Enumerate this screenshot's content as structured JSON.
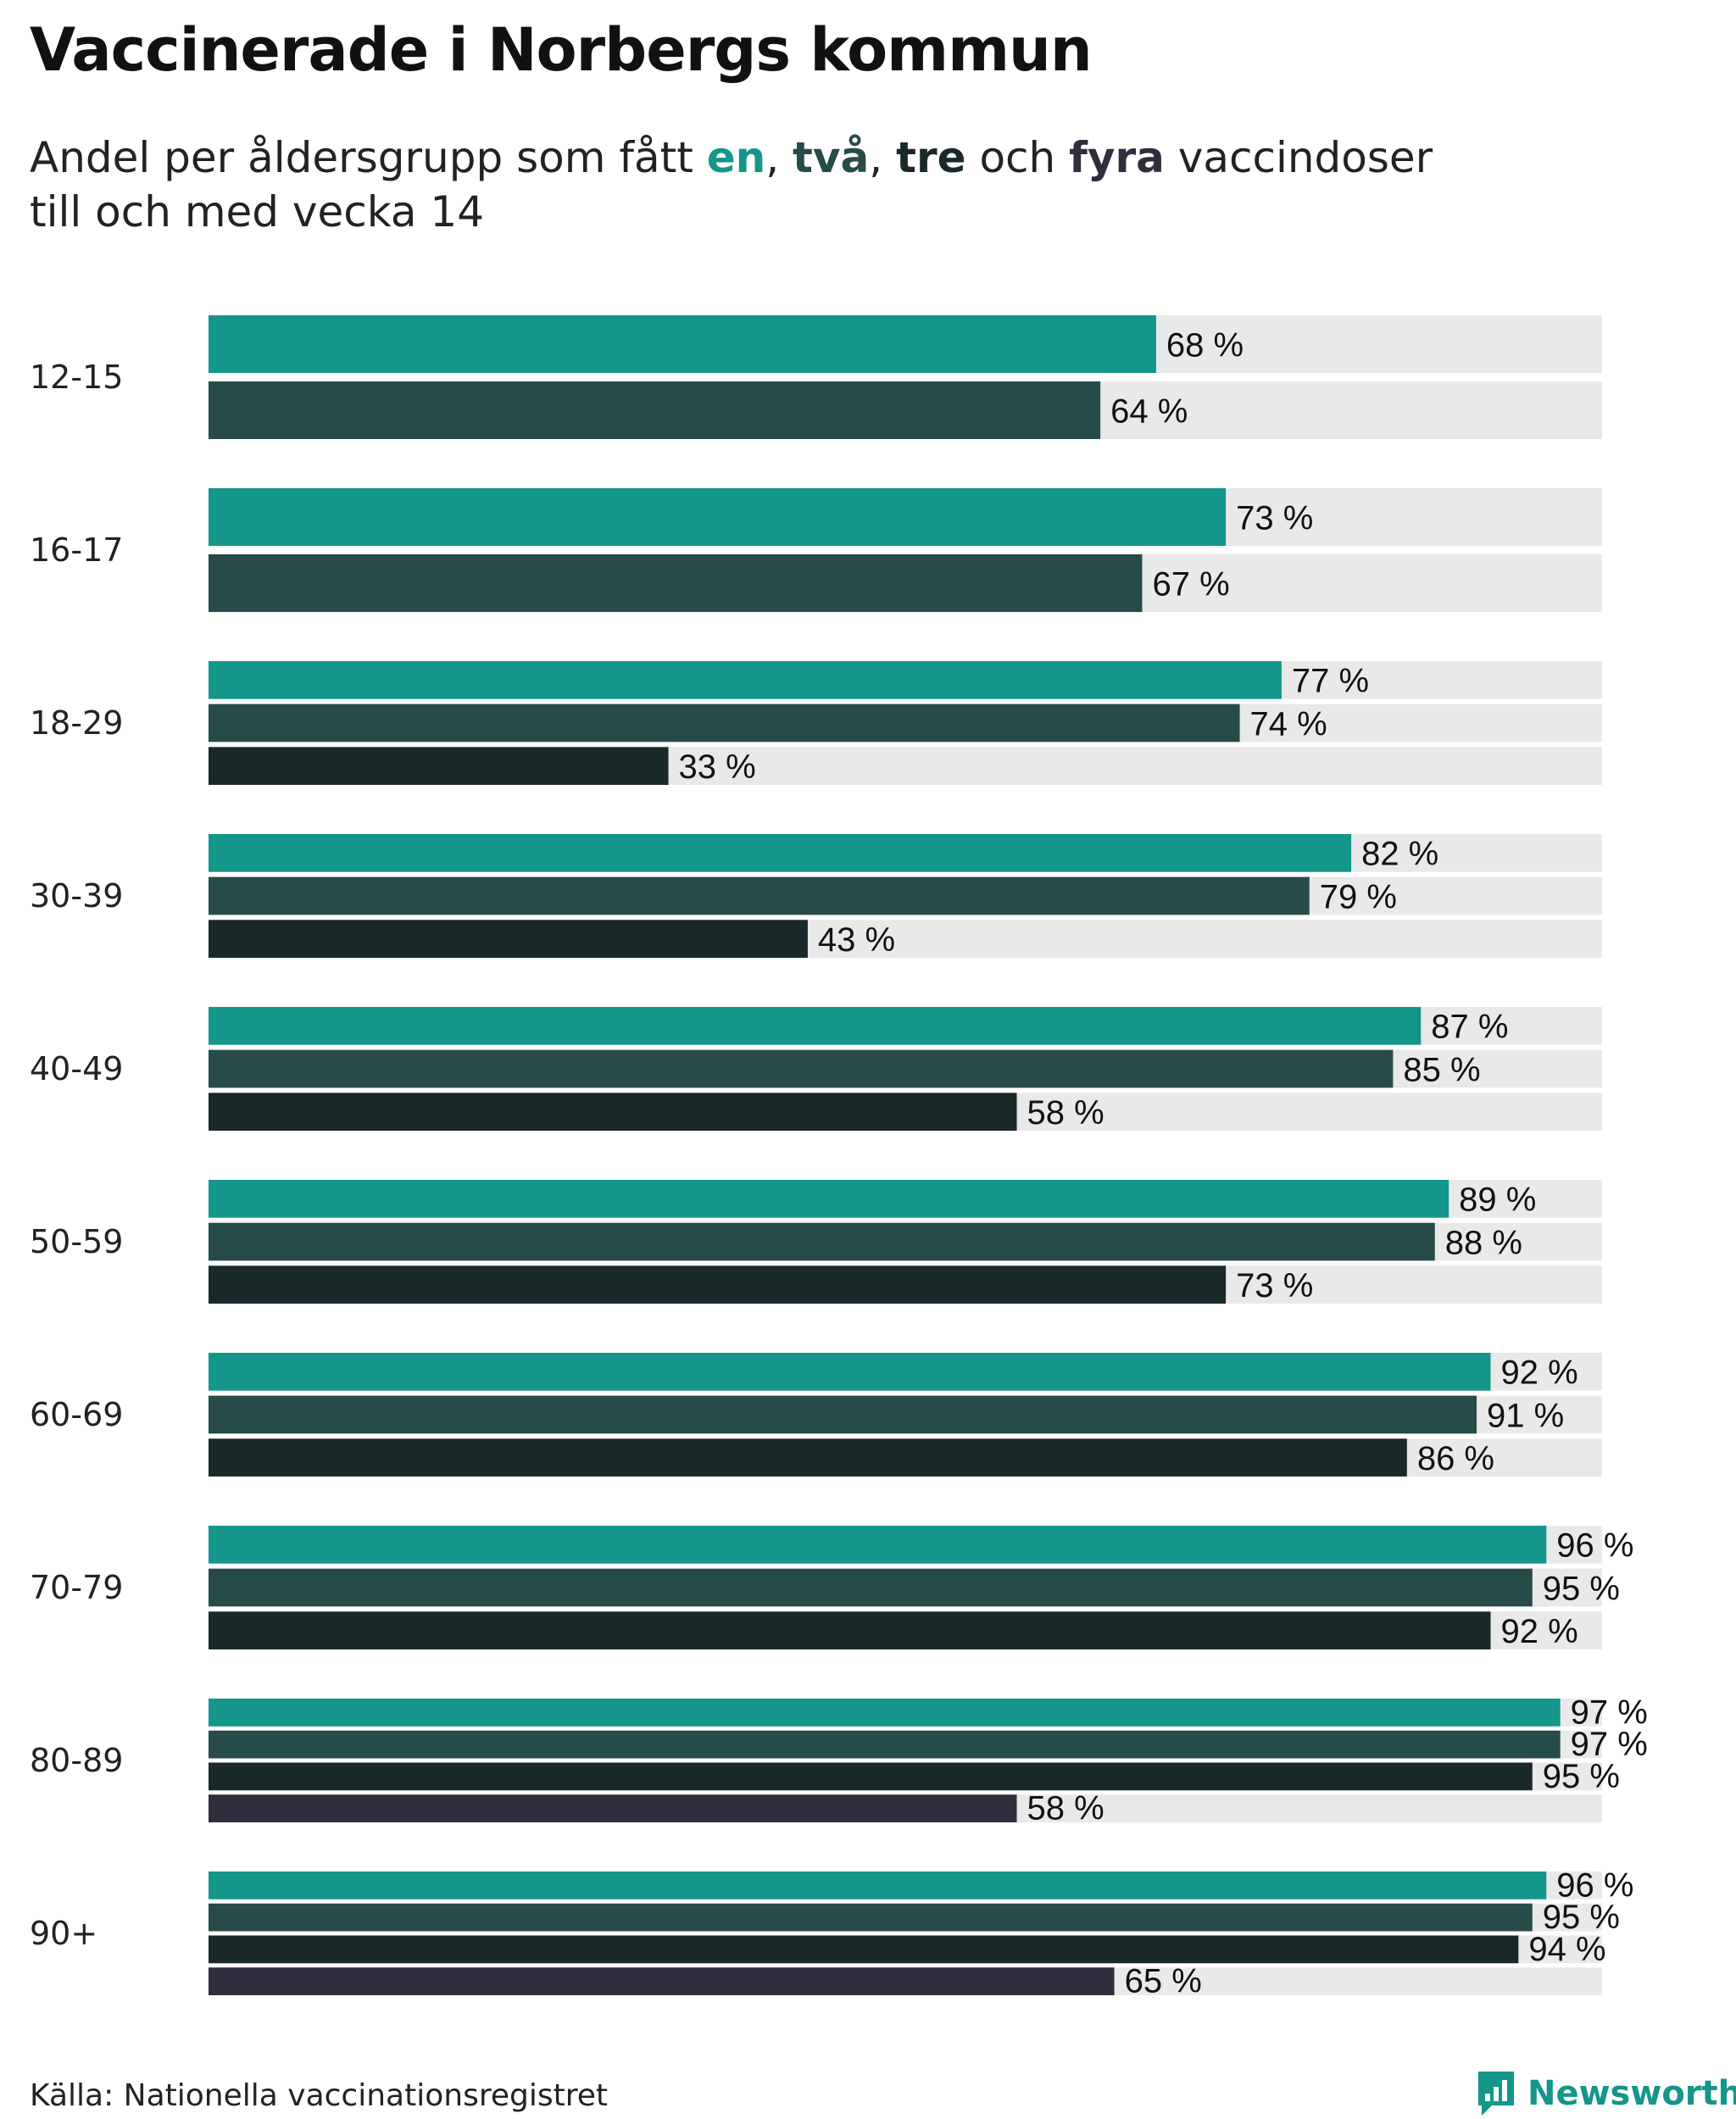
{
  "title": "Vaccinerade i Norbergs kommun",
  "subtitle": {
    "prefix": "Andel per åldersgrupp som fått ",
    "w1": "en",
    "sep1": ", ",
    "w2": "två",
    "sep2": ", ",
    "w3": "tre",
    "sep3": " och ",
    "w4": "fyra",
    "suffix": " vaccindoser",
    "line2": "till och med vecka 14"
  },
  "source": "Källa: Nationella vaccinationsregistret",
  "brand": "Newsworthy",
  "colors": {
    "dose1": "#14968a",
    "dose2": "#264b49",
    "dose3": "#19292a",
    "dose4": "#2f2e3c",
    "track": "#e9e9e9"
  },
  "chart_data": {
    "type": "bar",
    "orientation": "horizontal",
    "title": "Vaccinerade i Norbergs kommun",
    "subtitle": "Andel per åldersgrupp som fått en, två, tre och fyra vaccindoser till och med vecka 14",
    "xlim": [
      0,
      100
    ],
    "unit": "%",
    "categories": [
      "12-15",
      "16-17",
      "18-29",
      "30-39",
      "40-49",
      "50-59",
      "60-69",
      "70-79",
      "80-89",
      "90+"
    ],
    "series": [
      {
        "name": "en",
        "values": [
          68,
          73,
          77,
          82,
          87,
          89,
          92,
          96,
          97,
          96
        ]
      },
      {
        "name": "två",
        "values": [
          64,
          67,
          74,
          79,
          85,
          88,
          91,
          95,
          97,
          95
        ]
      },
      {
        "name": "tre",
        "values": [
          null,
          null,
          33,
          43,
          58,
          73,
          86,
          92,
          95,
          94
        ]
      },
      {
        "name": "fyra",
        "values": [
          null,
          null,
          null,
          null,
          null,
          null,
          null,
          null,
          58,
          65
        ]
      }
    ]
  }
}
